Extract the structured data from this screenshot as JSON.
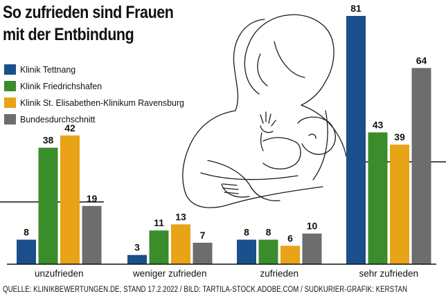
{
  "title_lines": [
    "So zufrieden sind Frauen",
    "mit der Entbindung"
  ],
  "footer": "QUELLE: KLINIKBEWERTUNGEN.DE, STAND 17.2.2022 / BILD: TARTILA-STOCK.ADOBE.COM / SÜDKURIER-GRAFIK: KERSTAN",
  "chart_data": {
    "type": "bar",
    "categories": [
      "unzufrieden",
      "weniger zufrieden",
      "zufrieden",
      "sehr zufrieden"
    ],
    "series": [
      {
        "name": "Klinik Tettnang",
        "color": "#1a4f8b",
        "values": [
          8,
          3,
          8,
          81
        ]
      },
      {
        "name": "Klinik Friedrichshafen",
        "color": "#3b8c2a",
        "values": [
          38,
          11,
          8,
          43
        ]
      },
      {
        "name": "Klinik St. Elisabethen-Klinikum Ravensburg",
        "color": "#e8a317",
        "values": [
          42,
          13,
          6,
          39
        ]
      },
      {
        "name": "Bundesdurchschnitt",
        "color": "#6d6d6d",
        "values": [
          19,
          7,
          10,
          64
        ]
      }
    ],
    "ylim": [
      0,
      81
    ],
    "legend_position": "top-left",
    "grid": false,
    "data_labels": true
  }
}
